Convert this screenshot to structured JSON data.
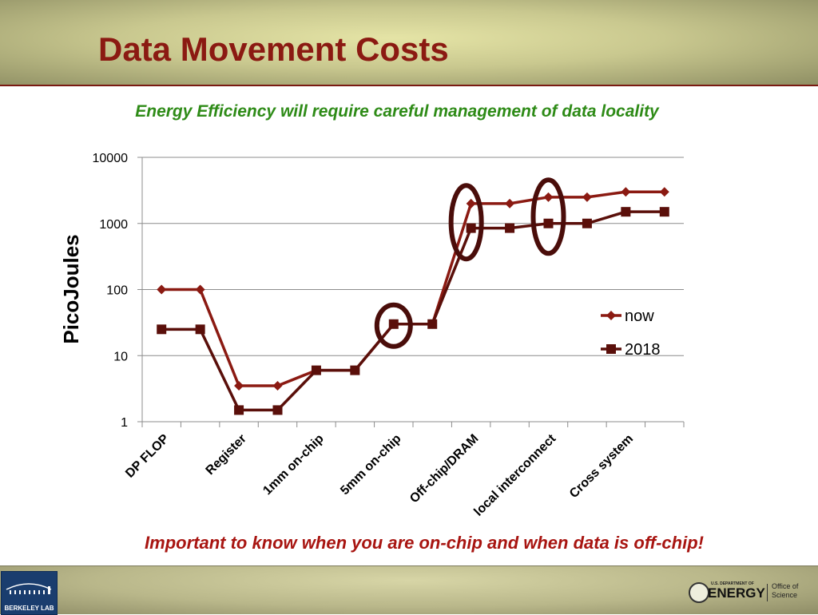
{
  "slide": {
    "title": "Data Movement Costs",
    "subtitle": "Energy Efficiency will require careful management of data locality",
    "footnote": "Important to know when you are on-chip and when data is off-chip!"
  },
  "footer": {
    "left_logo_text": "BERKELEY LAB",
    "doe_small_text": "U.S. DEPARTMENT OF",
    "doe_energy_text": "ENERGY",
    "doe_office_line1": "Office of",
    "doe_office_line2": "Science"
  },
  "chart_data": {
    "type": "line",
    "y_scale": "log",
    "ylim": [
      1,
      10000
    ],
    "y_ticks": [
      1,
      10,
      100,
      1000,
      10000
    ],
    "ylabel": "PicoJoules",
    "xlabel": "",
    "grid": true,
    "legend_position": "right",
    "categories": [
      "DP FLOP",
      "",
      "Register",
      "",
      "1mm on-chip",
      "",
      "5mm on-chip",
      "",
      "Off-chip/DRAM",
      "",
      "local interconnect",
      "",
      "Cross system",
      ""
    ],
    "series": [
      {
        "name": "now",
        "color": "#8b1a12",
        "marker": "diamond",
        "values": [
          100,
          100,
          3.5,
          3.5,
          6,
          6,
          30,
          30,
          2000,
          2000,
          2500,
          2500,
          3000,
          3000
        ]
      },
      {
        "name": "2018",
        "color": "#5a0f0a",
        "marker": "square",
        "values": [
          25,
          25,
          1.5,
          1.5,
          6,
          6,
          30,
          30,
          850,
          850,
          1000,
          1000,
          1500,
          1500
        ]
      }
    ],
    "highlighted_points": [
      6,
      8,
      10
    ]
  }
}
